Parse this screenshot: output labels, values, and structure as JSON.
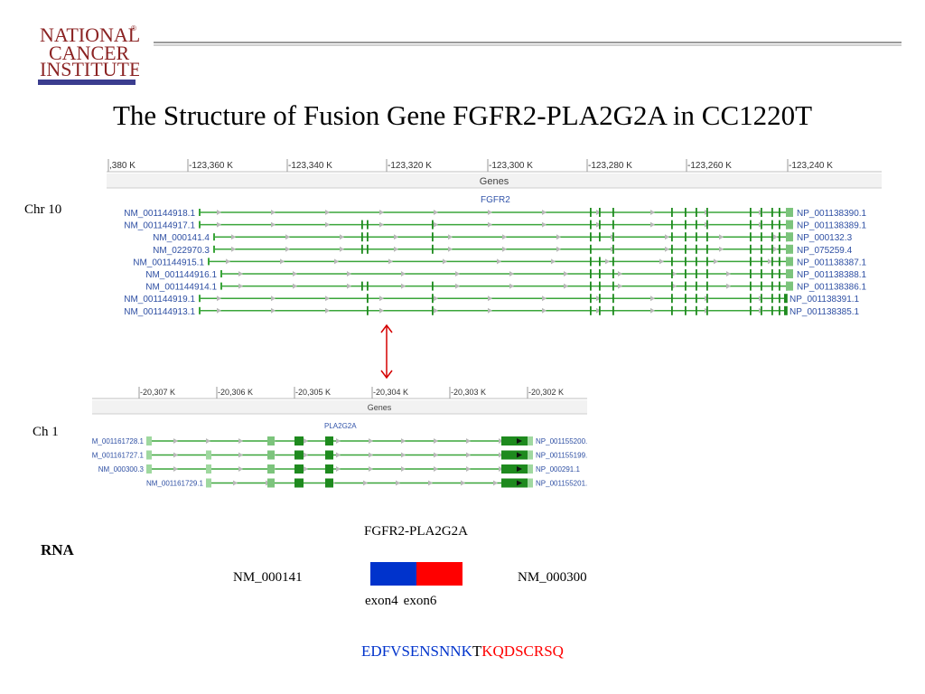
{
  "logo": {
    "line1": "NATIONAL",
    "line2": "CANCER",
    "line3": "INSTITUTE",
    "mark": "®"
  },
  "title": "The Structure of Fusion Gene FGFR2-PLA2G2A in CC1220T",
  "panel1": {
    "side_label": "Chr 10",
    "ruler": [
      ",380 K",
      "-123,360 K",
      "-123,340 K",
      "-123,320 K",
      "-123,300 K",
      "-123,280 K",
      "-123,260 K",
      "-123,240 K"
    ],
    "track_label": "Genes",
    "gene_name": "FGFR2",
    "rows": [
      {
        "left": "NM_001144918.1",
        "right": "NP_001138390.1"
      },
      {
        "left": "NM_001144917.1",
        "right": "NP_001138389.1"
      },
      {
        "left": "NM_000141.4",
        "right": "NP_000132.3"
      },
      {
        "left": "NM_022970.3",
        "right": "NP_075259.4"
      },
      {
        "left": "NM_001144915.1",
        "right": "NP_001138387.1"
      },
      {
        "left": "NM_001144916.1",
        "right": "NP_001138388.1"
      },
      {
        "left": "NM_001144914.1",
        "right": "NP_001138386.1"
      },
      {
        "left": "NM_001144919.1",
        "right": "NP_001138391.1"
      },
      {
        "left": "NM_001144913.1",
        "right": "NP_001138385.1"
      }
    ]
  },
  "panel2": {
    "side_label": "Ch 1",
    "ruler": [
      "-20,307 K",
      "-20,306 K",
      "-20,305 K",
      "-20,304 K",
      "-20,303 K",
      "-20,302 K"
    ],
    "track_label": "Genes",
    "gene_name": "PLA2G2A",
    "rows": [
      {
        "left": "NM_001161728.1",
        "right": "NP_001155200.1"
      },
      {
        "left": "NM_001161727.1",
        "right": "NP_001155199.1"
      },
      {
        "left": "NM_000300.3",
        "right": "NP_000291.1"
      },
      {
        "left": "NM_001161729.1",
        "right": "NP_001155201.1"
      }
    ]
  },
  "rna": {
    "label": "RNA",
    "fusion_name": "FGFR2-PLA2G2A",
    "left_transcript": "NM_000141",
    "right_transcript": "NM_000300",
    "exon_left": "exon4",
    "exon_right": "exon6",
    "colors": {
      "left": "#0033cc",
      "right": "#ff0000"
    }
  },
  "sequence": {
    "part1": "EDFVSENSNNK",
    "part2": "T",
    "part3": "KQDSCRSQ"
  }
}
